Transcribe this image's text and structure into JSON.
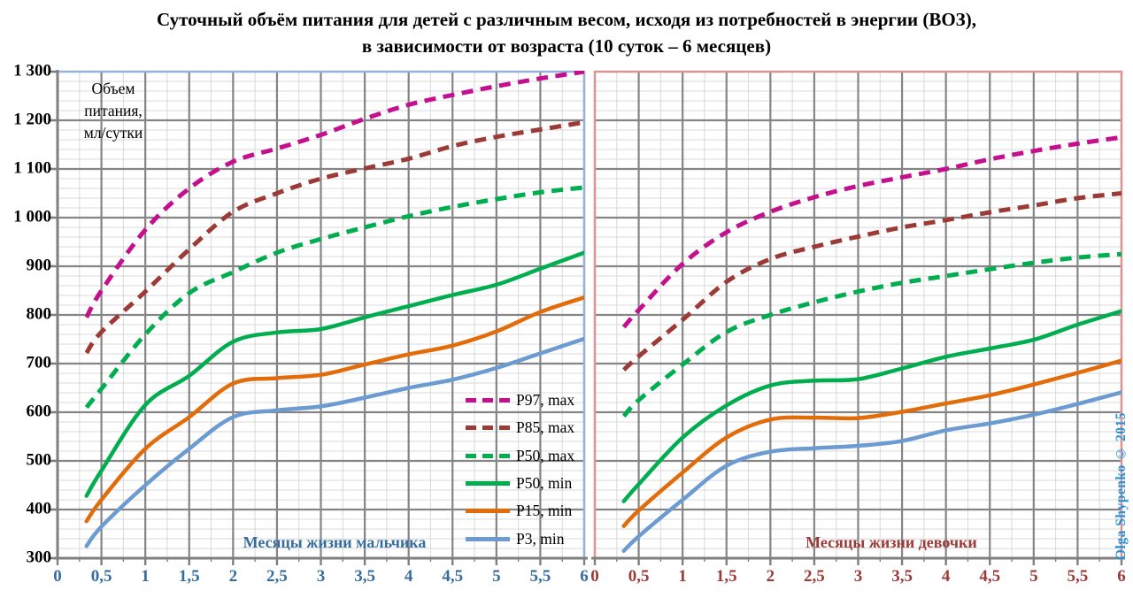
{
  "title": {
    "line1": "Суточный объём питания для детей с различным весом, исходя из потребностей в энергии (ВОЗ),",
    "line2": "в зависимости от возраста (10 суток – 6 месяцев)"
  },
  "y_axis": {
    "label_lines": [
      "Объем",
      "питания,",
      "мл/сутки"
    ],
    "tick_labels": [
      "1 300",
      "1 200",
      "1 100",
      "1 000",
      "900",
      "800",
      "700",
      "600",
      "500",
      "400",
      "300"
    ],
    "tick_values": [
      1300,
      1200,
      1100,
      1000,
      900,
      800,
      700,
      600,
      500,
      400,
      300
    ]
  },
  "x_axis": {
    "tick_labels": [
      "0",
      "0,5",
      "1",
      "1,5",
      "2",
      "2,5",
      "3",
      "3,5",
      "4",
      "4,5",
      "5",
      "5,5",
      "6"
    ],
    "tick_values": [
      0,
      0.5,
      1,
      1.5,
      2,
      2.5,
      3,
      3.5,
      4,
      4.5,
      5,
      5.5,
      6
    ]
  },
  "legend": {
    "items": [
      {
        "label": "P97, max",
        "color": "#C4108E",
        "dashed": true
      },
      {
        "label": "P85, max",
        "color": "#9C3A36",
        "dashed": true
      },
      {
        "label": "P50, max",
        "color": "#00AE50",
        "dashed": true
      },
      {
        "label": "P50, min",
        "color": "#00AE50",
        "dashed": false
      },
      {
        "label": "P15, min",
        "color": "#E36C0A",
        "dashed": false
      },
      {
        "label": "P3, min",
        "color": "#6C9BD2",
        "dashed": false
      }
    ]
  },
  "watermark": {
    "text": "Olga Shypenko © 2015",
    "color": "#2593D6"
  },
  "grid": {
    "minor_color": "#D9D9D9",
    "major_color": "#858585",
    "axis_color": "#7F7F7F"
  },
  "chart_data": [
    {
      "type": "line",
      "caption": "Месяцы жизни мальчика",
      "caption_color": "#356D9E",
      "x_label_color": "#356D9E",
      "border_color": "#95B3D7",
      "xlabel": "Месяцы жизни мальчика",
      "ylabel": "Объем питания, мл/сутки",
      "xlim": [
        0,
        6
      ],
      "ylim": [
        300,
        1300
      ],
      "x": [
        0.33,
        0.5,
        1,
        1.5,
        2,
        2.5,
        3,
        3.5,
        4,
        4.5,
        5,
        5.5,
        6
      ],
      "series": [
        {
          "name": "P97, max",
          "color": "#C4108E",
          "dashed": true,
          "values": [
            795,
            850,
            975,
            1060,
            1115,
            1142,
            1170,
            1203,
            1232,
            1252,
            1270,
            1286,
            1300
          ]
        },
        {
          "name": "P85, max",
          "color": "#9C3A36",
          "dashed": true,
          "values": [
            722,
            765,
            848,
            935,
            1012,
            1050,
            1080,
            1101,
            1121,
            1147,
            1166,
            1181,
            1196
          ]
        },
        {
          "name": "P50, max",
          "color": "#00AE50",
          "dashed": true,
          "values": [
            610,
            648,
            760,
            845,
            888,
            928,
            956,
            980,
            1003,
            1022,
            1038,
            1052,
            1062
          ]
        },
        {
          "name": "P50, min",
          "color": "#00AE50",
          "dashed": false,
          "values": [
            428,
            480,
            615,
            675,
            745,
            764,
            771,
            795,
            818,
            841,
            862,
            895,
            928
          ]
        },
        {
          "name": "P15, min",
          "color": "#E36C0A",
          "dashed": false,
          "values": [
            376,
            420,
            525,
            590,
            659,
            670,
            677,
            698,
            719,
            737,
            766,
            806,
            836
          ]
        },
        {
          "name": "P3, min",
          "color": "#6C9BD2",
          "dashed": false,
          "values": [
            325,
            365,
            450,
            525,
            590,
            604,
            612,
            630,
            650,
            667,
            691,
            721,
            751
          ]
        }
      ]
    },
    {
      "type": "line",
      "caption": "Месяцы жизни девочки",
      "caption_color": "#9C3A36",
      "x_label_color": "#9C3A36",
      "border_color": "#D99694",
      "xlabel": "Месяцы жизни девочки",
      "ylabel": "Объем питания, мл/сутки",
      "xlim": [
        0,
        6
      ],
      "ylim": [
        300,
        1300
      ],
      "x": [
        0.33,
        0.5,
        1,
        1.5,
        2,
        2.5,
        3,
        3.5,
        4,
        4.5,
        5,
        5.5,
        6
      ],
      "series": [
        {
          "name": "P97, max",
          "color": "#C4108E",
          "dashed": true,
          "values": [
            775,
            810,
            905,
            970,
            1012,
            1042,
            1065,
            1083,
            1100,
            1120,
            1137,
            1152,
            1165
          ]
        },
        {
          "name": "P85, max",
          "color": "#9C3A36",
          "dashed": true,
          "values": [
            687,
            715,
            790,
            868,
            915,
            940,
            961,
            980,
            995,
            1011,
            1025,
            1040,
            1050
          ]
        },
        {
          "name": "P50, max",
          "color": "#00AE50",
          "dashed": true,
          "values": [
            592,
            625,
            698,
            765,
            800,
            826,
            848,
            866,
            880,
            894,
            907,
            918,
            925
          ]
        },
        {
          "name": "P50, min",
          "color": "#00AE50",
          "dashed": false,
          "values": [
            417,
            452,
            548,
            614,
            655,
            665,
            668,
            690,
            714,
            731,
            749,
            780,
            808
          ]
        },
        {
          "name": "P15, min",
          "color": "#E36C0A",
          "dashed": false,
          "values": [
            366,
            398,
            476,
            548,
            585,
            589,
            588,
            601,
            618,
            635,
            657,
            681,
            706
          ]
        },
        {
          "name": "P3, min",
          "color": "#6C9BD2",
          "dashed": false,
          "values": [
            315,
            345,
            420,
            490,
            519,
            526,
            531,
            541,
            563,
            577,
            595,
            617,
            641
          ]
        }
      ]
    }
  ]
}
